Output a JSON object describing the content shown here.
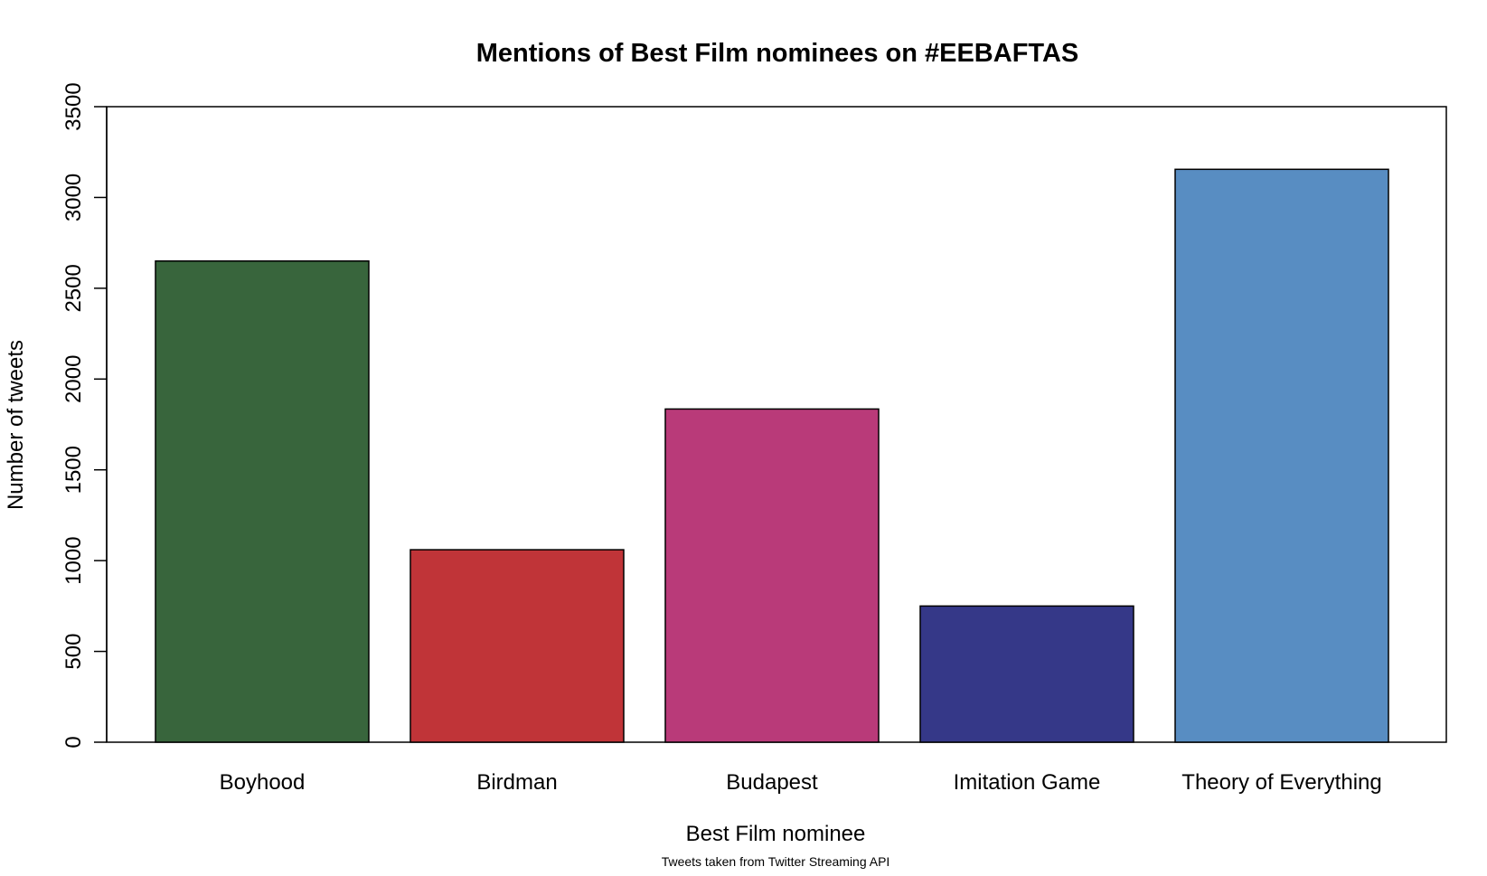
{
  "chart_data": {
    "type": "bar",
    "title": "Mentions of Best Film nominees on #EEBAFTAS",
    "xlabel": "Best Film nominee",
    "ylabel": "Number of tweets",
    "caption": "Tweets taken from Twitter Streaming API",
    "categories": [
      "Boyhood",
      "Birdman",
      "Budapest",
      "Imitation Game",
      "Theory of Everything"
    ],
    "values": [
      2650,
      1060,
      1835,
      750,
      3155
    ],
    "colors": [
      "#38653c",
      "#c03438",
      "#b93a79",
      "#353888",
      "#588dc2"
    ],
    "ylim": [
      0,
      3500
    ],
    "yticks": [
      "0",
      "500",
      "1000",
      "1500",
      "2000",
      "2500",
      "3000",
      "3500"
    ],
    "grid": false,
    "legend": "none"
  }
}
